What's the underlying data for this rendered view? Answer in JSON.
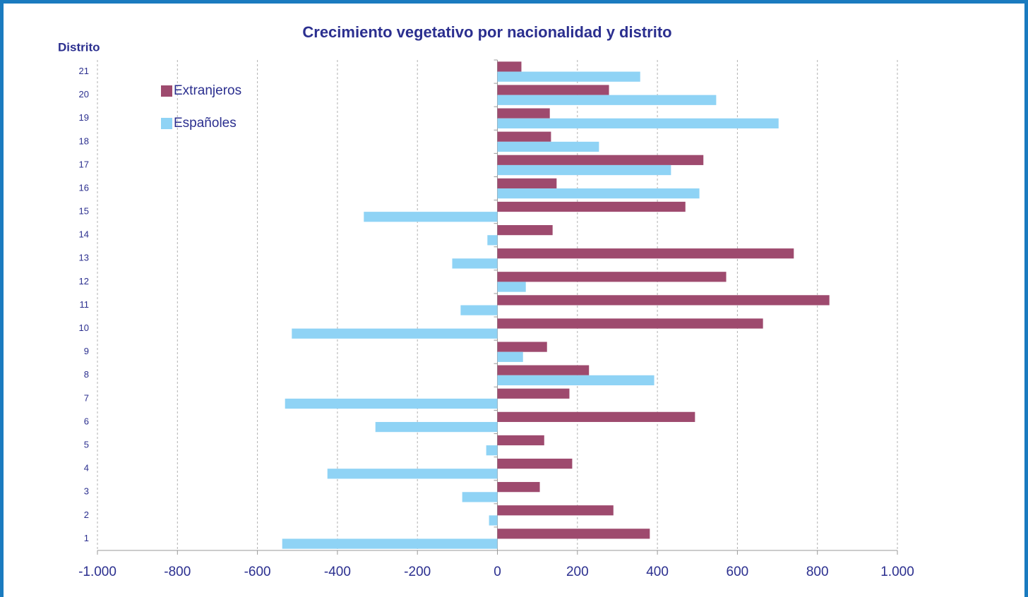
{
  "chart_data": {
    "type": "hbar",
    "title": "Crecimiento vegetativo por nacionalidad y distrito",
    "y_label": "Distrito",
    "categories": [
      "1",
      "2",
      "3",
      "4",
      "5",
      "6",
      "7",
      "8",
      "9",
      "10",
      "11",
      "12",
      "13",
      "14",
      "15",
      "16",
      "17",
      "18",
      "19",
      "20",
      "21"
    ],
    "series": [
      {
        "name": "Extranjeros",
        "color": "#9e4a6e",
        "values": [
          381,
          290,
          106,
          187,
          117,
          494,
          180,
          229,
          124,
          664,
          830,
          572,
          741,
          138,
          470,
          148,
          515,
          134,
          131,
          279,
          60
        ]
      },
      {
        "name": "Españoles",
        "color": "#8fd3f5",
        "values": [
          -538,
          -21,
          -88,
          -425,
          -28,
          -305,
          -531,
          392,
          64,
          -514,
          -92,
          71,
          -113,
          -25,
          -334,
          505,
          434,
          254,
          703,
          547,
          357
        ]
      }
    ],
    "xlim": [
      -1000,
      1000
    ],
    "xticks": [
      {
        "value": -1000,
        "label": "-1.000"
      },
      -800,
      -600,
      -400,
      -200,
      0,
      200,
      400,
      600,
      800,
      {
        "value": 1000,
        "label": "1.000"
      }
    ],
    "grid": true,
    "legend": "top-left"
  }
}
